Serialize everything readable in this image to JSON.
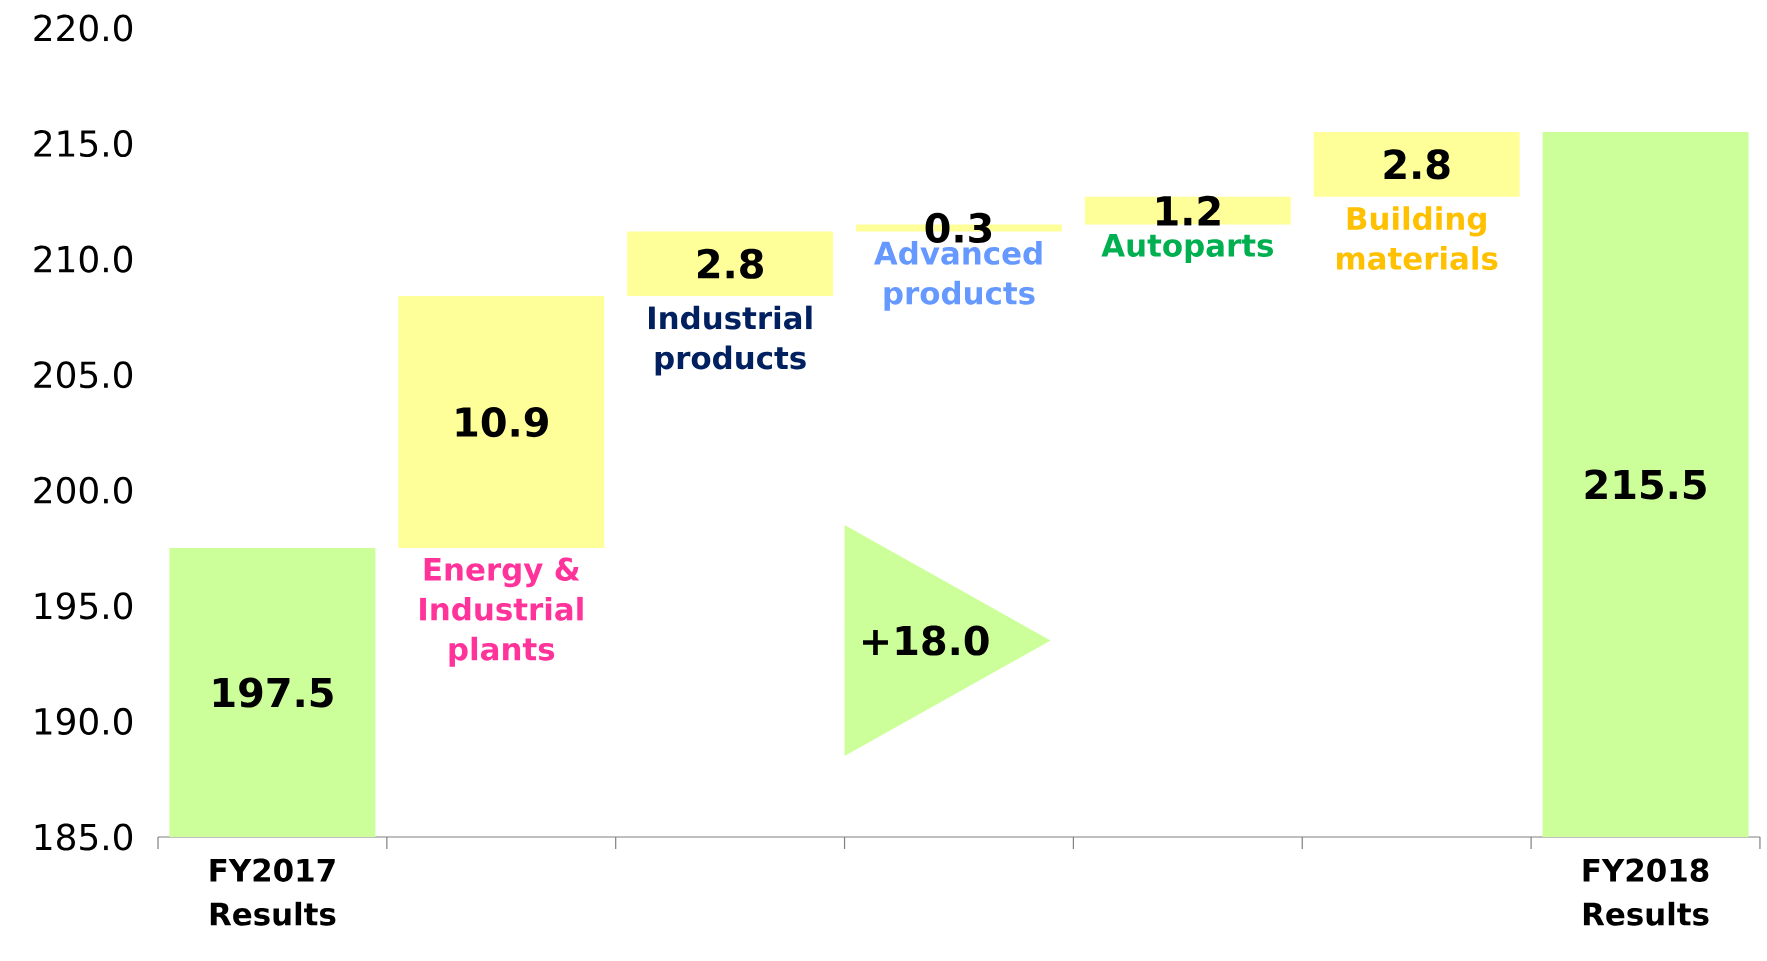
{
  "chart_data": {
    "type": "bar",
    "categories": [
      "FY2017 Results",
      "Energy & Industrial plants",
      "Industrial products",
      "Advanced products",
      "Autoparts",
      "Building materials",
      "FY2018 Results"
    ],
    "values": [
      197.5,
      10.9,
      2.8,
      0.3,
      1.2,
      2.8,
      215.5
    ],
    "base": [
      null,
      197.5,
      208.4,
      211.2,
      211.5,
      212.7,
      null
    ],
    "colors": [
      "#ccff99",
      "#ffff99",
      "#ffff99",
      "#ffff99",
      "#ffff99",
      "#ffff99",
      "#ccff99"
    ],
    "data_labels": true,
    "ylim": [
      185,
      220
    ],
    "yticks": [
      {
        "value": 185,
        "label": "185.0"
      },
      {
        "value": 190,
        "label": "190.0"
      },
      {
        "value": 195,
        "label": "195.0"
      },
      {
        "value": 200,
        "label": "200.0"
      },
      {
        "value": 205,
        "label": "205.0"
      },
      {
        "value": 210,
        "label": "210.0"
      },
      {
        "value": 215,
        "label": "215.0"
      },
      {
        "value": 220,
        "label": "220.0"
      }
    ],
    "annotations": [
      "+18.0"
    ]
  }
}
